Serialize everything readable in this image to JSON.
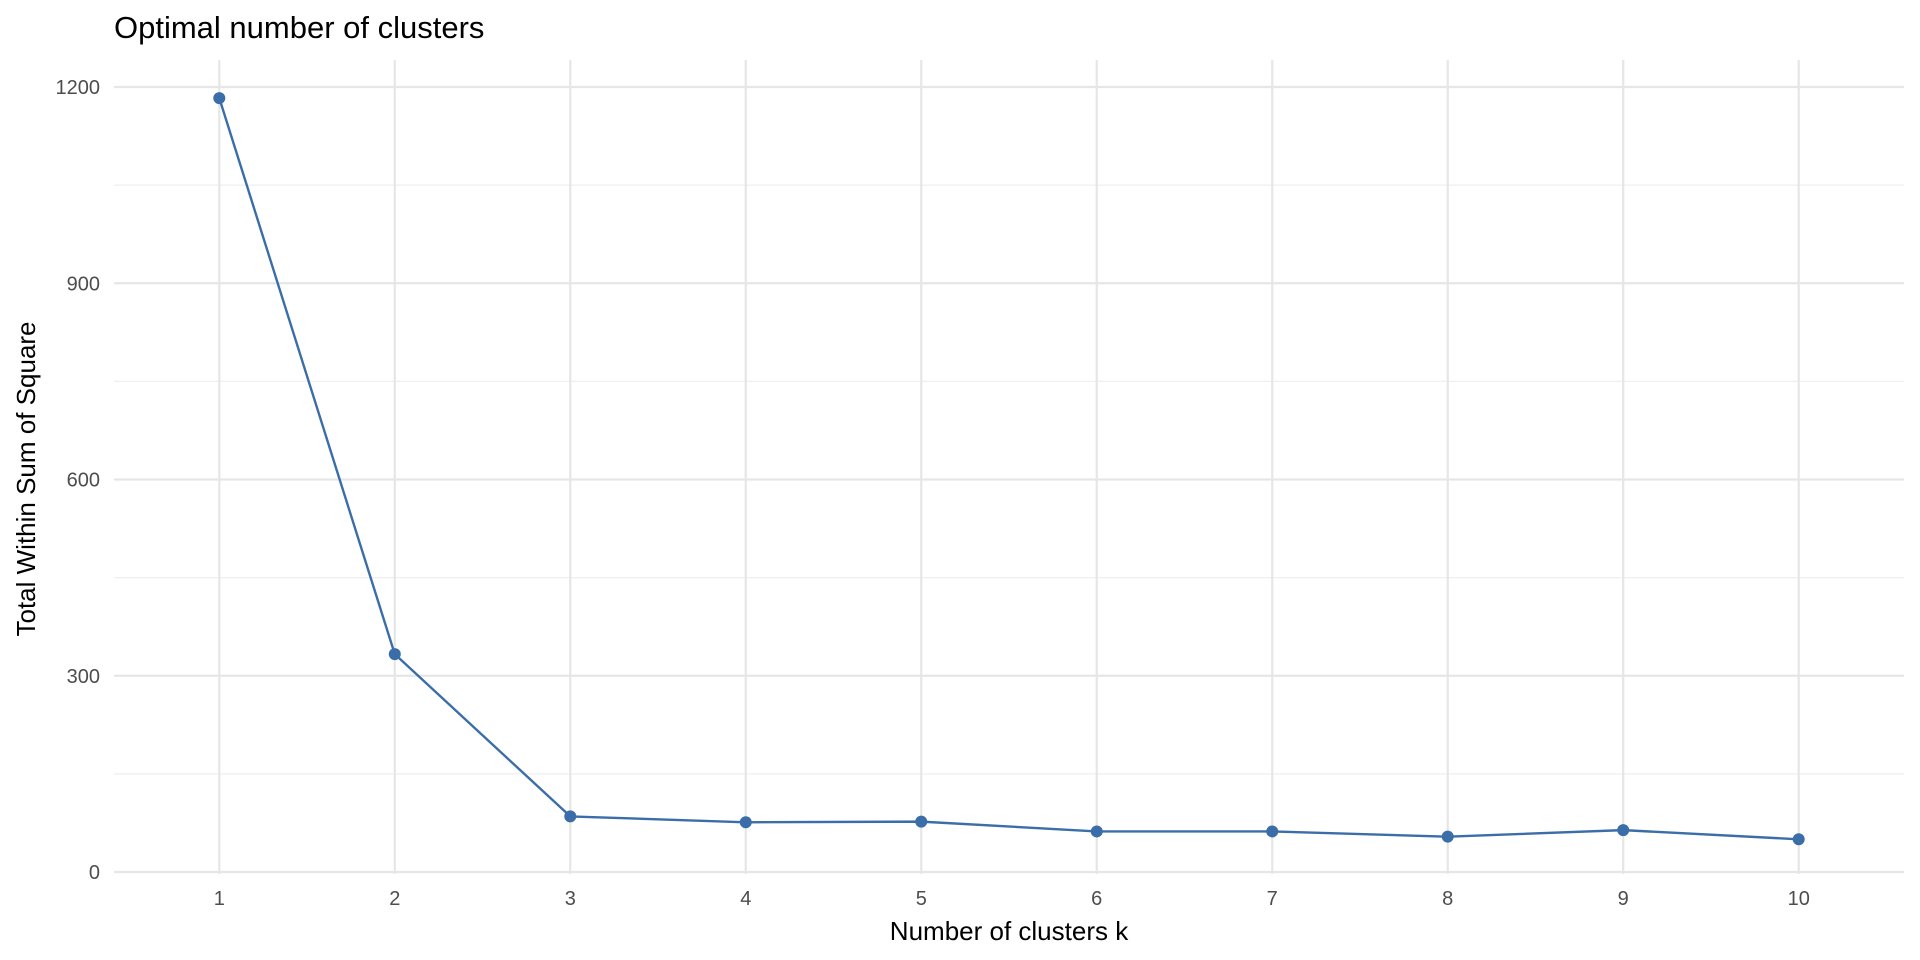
{
  "chart_data": {
    "type": "line",
    "title": "Optimal number of clusters",
    "xlabel": "Number of clusters k",
    "ylabel": "Total Within Sum of Square",
    "x": [
      1,
      2,
      3,
      4,
      5,
      6,
      7,
      8,
      9,
      10
    ],
    "x_tick_labels": [
      "1",
      "2",
      "3",
      "4",
      "5",
      "6",
      "7",
      "8",
      "9",
      "10"
    ],
    "y_ticks": [
      0,
      300,
      600,
      900,
      1200
    ],
    "y_tick_labels": [
      "0",
      "300",
      "600",
      "900",
      "1200"
    ],
    "ylim": [
      0,
      1200
    ],
    "series": [
      {
        "values": [
          1183,
          333,
          85,
          76,
          77,
          62,
          62,
          54,
          64,
          50
        ],
        "color": "#3b6ea8"
      }
    ],
    "grid": true,
    "legend": "none"
  }
}
